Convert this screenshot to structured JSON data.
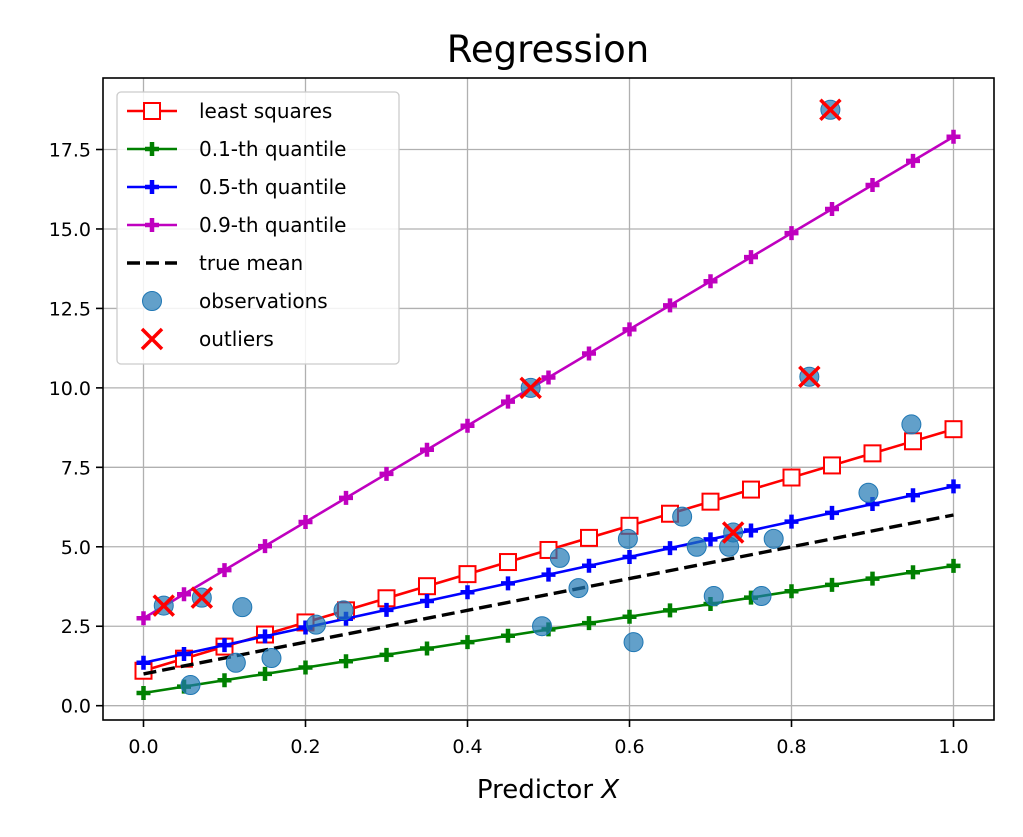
{
  "chart_data": {
    "type": "line",
    "title": "Regression",
    "xlabel": "Predictor X",
    "ylabel": "",
    "xlim": [
      -0.05,
      1.05
    ],
    "ylim": [
      -0.45,
      19.75
    ],
    "xticks": [
      0.0,
      0.2,
      0.4,
      0.6,
      0.8,
      1.0
    ],
    "xtick_labels": [
      "0.0",
      "0.2",
      "0.4",
      "0.6",
      "0.8",
      "1.0"
    ],
    "yticks": [
      0.0,
      2.5,
      5.0,
      7.5,
      10.0,
      12.5,
      15.0,
      17.5
    ],
    "ytick_labels": [
      "0.0",
      "2.5",
      "5.0",
      "7.5",
      "10.0",
      "12.5",
      "15.0",
      "17.5"
    ],
    "grid": true,
    "legend_position": "upper-left",
    "lines": [
      {
        "name": "least squares",
        "color": "#ff0000",
        "marker": "open-square",
        "style": "solid",
        "intercept": 1.1,
        "slope": 7.6,
        "marker_step": 0.05
      },
      {
        "name": "0.1-th quantile",
        "color": "#008000",
        "marker": "plus",
        "style": "solid",
        "intercept": 0.4,
        "slope": 4.0,
        "marker_step": 0.05
      },
      {
        "name": "0.5-th quantile",
        "color": "#0000ff",
        "marker": "plus",
        "style": "solid",
        "intercept": 1.35,
        "slope": 5.55,
        "marker_step": 0.05
      },
      {
        "name": "0.9-th quantile",
        "color": "#bf00bf",
        "marker": "plus",
        "style": "solid",
        "intercept": 2.75,
        "slope": 15.15,
        "marker_step": 0.05
      },
      {
        "name": "true mean",
        "color": "#000000",
        "marker": "none",
        "style": "dashed",
        "intercept": 1.0,
        "slope": 5.0,
        "marker_step": 0
      }
    ],
    "observations": {
      "name": "observations",
      "color": "#1f77b4",
      "x": [
        0.025,
        0.058,
        0.072,
        0.114,
        0.122,
        0.158,
        0.213,
        0.247,
        0.478,
        0.492,
        0.514,
        0.537,
        0.598,
        0.605,
        0.665,
        0.683,
        0.704,
        0.723,
        0.728,
        0.763,
        0.778,
        0.822,
        0.848,
        0.895,
        0.948
      ],
      "y": [
        3.15,
        0.65,
        3.4,
        1.35,
        3.1,
        1.5,
        2.55,
        3.0,
        10.0,
        2.5,
        4.65,
        3.7,
        5.25,
        2.0,
        5.95,
        5.0,
        3.45,
        5.0,
        5.45,
        3.45,
        5.25,
        10.35,
        18.75,
        6.7,
        8.85
      ]
    },
    "outliers": {
      "name": "outliers",
      "color": "#ff0000",
      "x": [
        0.025,
        0.072,
        0.478,
        0.728,
        0.822,
        0.848
      ],
      "y": [
        3.15,
        3.4,
        10.0,
        5.45,
        10.35,
        18.75
      ]
    }
  }
}
